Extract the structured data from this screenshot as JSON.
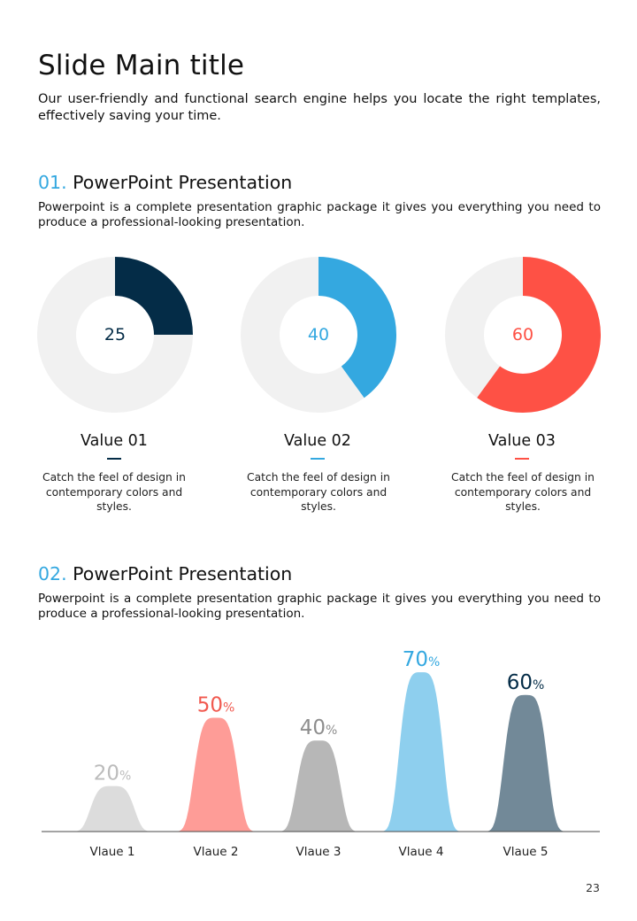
{
  "page": {
    "title": "Slide Main title",
    "intro": "Our user-friendly and functional search engine helps you locate the right templates, effectively saving your time.",
    "page_number": "23"
  },
  "sections": [
    {
      "number": "01.",
      "heading": "PowerPoint Presentation",
      "body": "Powerpoint is a complete presentation graphic package it gives you everything you need to produce a professional-looking presentation."
    },
    {
      "number": "02.",
      "heading": "PowerPoint Presentation",
      "body": "Powerpoint is a complete presentation graphic package it gives you everything you need to produce a professional-looking presentation."
    }
  ],
  "colors": {
    "accent_blue": "#34a8e0",
    "navy": "#042c47",
    "red": "#fe5145",
    "track": "#f1f1f1"
  },
  "chart_data": [
    {
      "type": "pie",
      "variant": "donut",
      "max": 100,
      "items": [
        {
          "label": "Value 01",
          "value": 25,
          "color": "#042c47",
          "description": "Catch the feel of design in contemporary colors and styles."
        },
        {
          "label": "Value 02",
          "value": 40,
          "color": "#34a8e0",
          "description": "Catch the feel of design in contemporary colors and styles."
        },
        {
          "label": "Value 03",
          "value": 60,
          "color": "#fe5145",
          "description": "Catch the feel of design in contemporary colors and styles."
        }
      ]
    },
    {
      "type": "area",
      "variant": "bell-curves",
      "unit": "%",
      "ylim": [
        0,
        100
      ],
      "categories": [
        "Vlaue 1",
        "Vlaue 2",
        "Vlaue 3",
        "Vlaue 4",
        "Vlaue 5"
      ],
      "values": [
        20,
        50,
        40,
        70,
        60
      ],
      "colors": [
        "#d9d9d9",
        "#fe948e",
        "#b1b1b1",
        "#84cbed",
        "#667f8f"
      ],
      "label_colors": [
        "#bcbcbc",
        "#f1594f",
        "#8e8e8e",
        "#34a8e0",
        "#042c47"
      ]
    }
  ]
}
